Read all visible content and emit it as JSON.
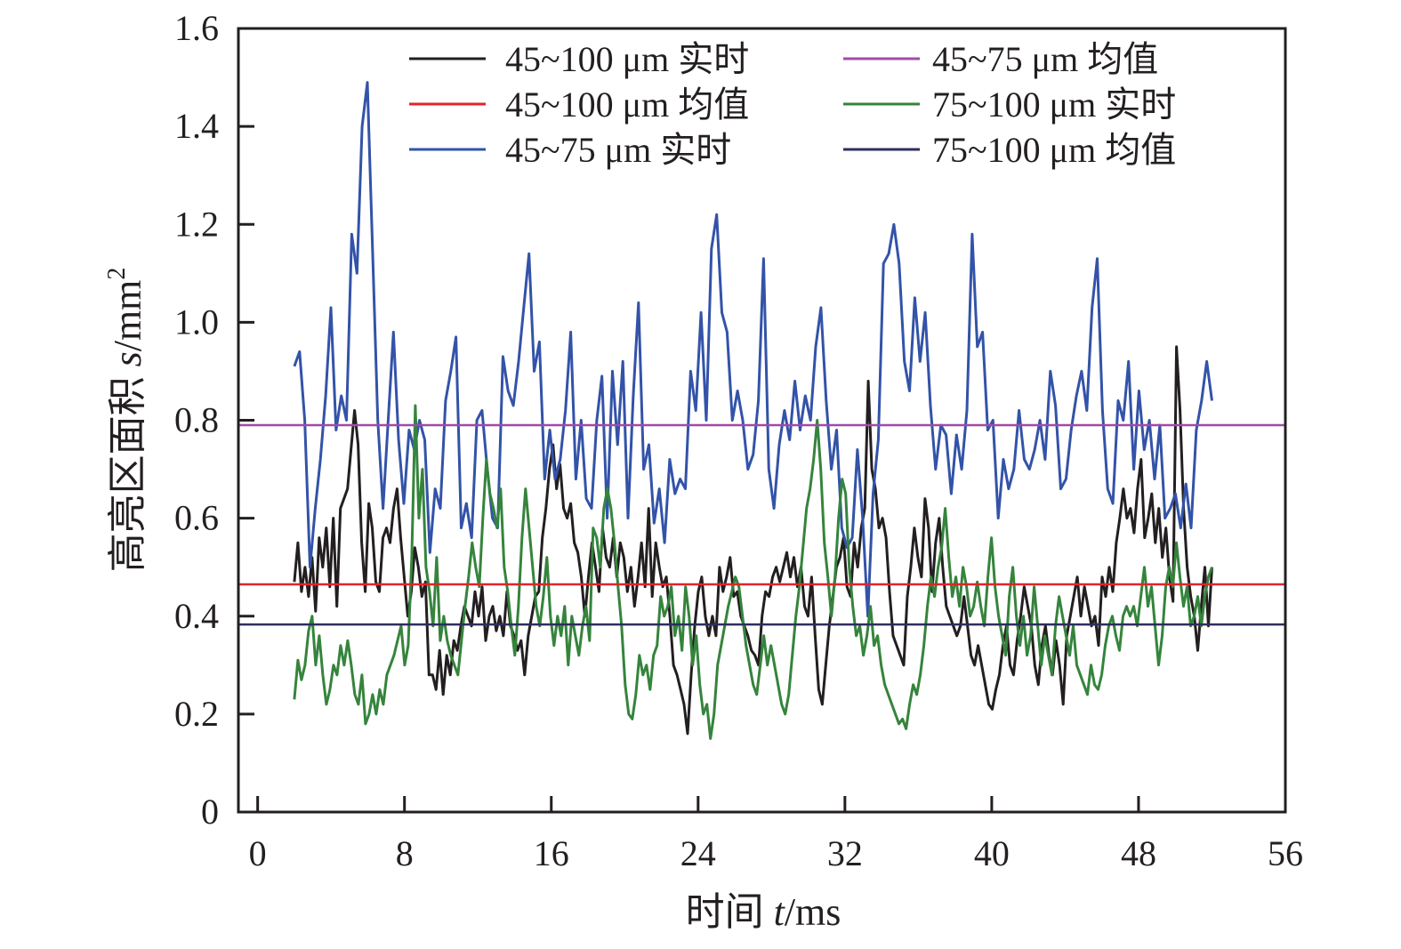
{
  "chart_data": {
    "type": "line",
    "title": "",
    "xlabel": {
      "prefix": "时间 ",
      "var": "t",
      "unit": "/ms"
    },
    "ylabel": {
      "prefix": "高亮区面积 ",
      "var": "s",
      "unit": "/mm",
      "sup": "2"
    },
    "xlim": [
      -1.05,
      56
    ],
    "ylim": [
      0,
      1.6
    ],
    "xticks": [
      "0",
      "8",
      "16",
      "24",
      "32",
      "40",
      "48",
      "56"
    ],
    "xtick_values": [
      0,
      8,
      16,
      24,
      32,
      40,
      48,
      56
    ],
    "yticks": [
      "0",
      "0.2",
      "0.4",
      "0.6",
      "0.8",
      "1.0",
      "1.2",
      "1.4",
      "1.6"
    ],
    "ytick_values": [
      0,
      0.2,
      0.4,
      0.6,
      0.8,
      1.0,
      1.2,
      1.4,
      1.6
    ],
    "grid": false,
    "legend_placement": "top",
    "series": [
      {
        "name": "45~100 μm 实时",
        "color": "#231f20",
        "x_range": [
          2,
          52
        ],
        "values": [
          0.47,
          0.55,
          0.45,
          0.5,
          0.44,
          0.52,
          0.41,
          0.56,
          0.5,
          0.58,
          0.46,
          0.6,
          0.42,
          0.62,
          0.64,
          0.66,
          0.74,
          0.82,
          0.75,
          0.55,
          0.45,
          0.63,
          0.58,
          0.47,
          0.45,
          0.56,
          0.58,
          0.55,
          0.62,
          0.66,
          0.56,
          0.48,
          0.4,
          0.45,
          0.54,
          0.5,
          0.44,
          0.47,
          0.28,
          0.28,
          0.25,
          0.33,
          0.24,
          0.32,
          0.28,
          0.35,
          0.33,
          0.38,
          0.42,
          0.4,
          0.38,
          0.45,
          0.4,
          0.46,
          0.35,
          0.4,
          0.42,
          0.37,
          0.4,
          0.36,
          0.45,
          0.38,
          0.36,
          0.33,
          0.35,
          0.28,
          0.36,
          0.4,
          0.44,
          0.45,
          0.56,
          0.62,
          0.7,
          0.75,
          0.66,
          0.71,
          0.62,
          0.6,
          0.63,
          0.55,
          0.53,
          0.48,
          0.4,
          0.48,
          0.55,
          0.5,
          0.45,
          0.58,
          0.52,
          0.5,
          0.56,
          0.48,
          0.55,
          0.52,
          0.45,
          0.5,
          0.42,
          0.48,
          0.55,
          0.46,
          0.62,
          0.44,
          0.55,
          0.5,
          0.46,
          0.48,
          0.4,
          0.3,
          0.28,
          0.25,
          0.22,
          0.16,
          0.28,
          0.38,
          0.45,
          0.48,
          0.4,
          0.36,
          0.4,
          0.36,
          0.5,
          0.45,
          0.48,
          0.52,
          0.44,
          0.45,
          0.4,
          0.38,
          0.36,
          0.33,
          0.32,
          0.3,
          0.4,
          0.45,
          0.44,
          0.48,
          0.5,
          0.47,
          0.5,
          0.53,
          0.48,
          0.52,
          0.46,
          0.5,
          0.42,
          0.4,
          0.48,
          0.36,
          0.25,
          0.22,
          0.3,
          0.38,
          0.44,
          0.5,
          0.52,
          0.56,
          0.46,
          0.44,
          0.55,
          0.5,
          0.58,
          0.62,
          0.88,
          0.7,
          0.66,
          0.58,
          0.6,
          0.56,
          0.45,
          0.36,
          0.34,
          0.32,
          0.3,
          0.44,
          0.5,
          0.58,
          0.52,
          0.48,
          0.64,
          0.58,
          0.45,
          0.55,
          0.6,
          0.5,
          0.42,
          0.4,
          0.38,
          0.36,
          0.38,
          0.44,
          0.38,
          0.32,
          0.3,
          0.34,
          0.3,
          0.26,
          0.22,
          0.21,
          0.25,
          0.28,
          0.34,
          0.38,
          0.3,
          0.28,
          0.35,
          0.4,
          0.46,
          0.42,
          0.38,
          0.3,
          0.26,
          0.34,
          0.38,
          0.32,
          0.28,
          0.35,
          0.3,
          0.22,
          0.36,
          0.4,
          0.44,
          0.48,
          0.4,
          0.46,
          0.42,
          0.38,
          0.4,
          0.34,
          0.48,
          0.44,
          0.5,
          0.45,
          0.55,
          0.6,
          0.66,
          0.6,
          0.62,
          0.57,
          0.66,
          0.72,
          0.56,
          0.6,
          0.65,
          0.55,
          0.62,
          0.52,
          0.58,
          0.48,
          0.43,
          0.95,
          0.82,
          0.62,
          0.5,
          0.44,
          0.4,
          0.33,
          0.42,
          0.5,
          0.38,
          0.5
        ]
      },
      {
        "name": "45~100 μm 均值",
        "color": "#e0242b",
        "constant": 0.465,
        "x_range": [
          -1.05,
          56
        ]
      },
      {
        "name": "45~75 μm 实时",
        "color": "#3353a8",
        "x_range": [
          2,
          52
        ],
        "values": [
          0.91,
          0.94,
          0.8,
          0.5,
          0.62,
          0.72,
          0.85,
          1.03,
          0.78,
          0.85,
          0.8,
          1.18,
          1.1,
          1.4,
          1.49,
          1.15,
          0.8,
          0.62,
          0.8,
          0.98,
          0.76,
          0.63,
          0.78,
          0.74,
          0.8,
          0.76,
          0.53,
          0.66,
          0.62,
          0.84,
          0.9,
          0.97,
          0.58,
          0.63,
          0.56,
          0.8,
          0.82,
          0.7,
          0.6,
          0.58,
          0.93,
          0.86,
          0.83,
          0.92,
          1.03,
          1.14,
          0.9,
          0.96,
          0.68,
          0.78,
          0.68,
          0.72,
          0.82,
          0.98,
          0.68,
          0.8,
          0.64,
          0.62,
          0.8,
          0.89,
          0.6,
          0.9,
          0.75,
          0.92,
          0.6,
          0.85,
          1.04,
          0.7,
          0.75,
          0.59,
          0.66,
          0.55,
          0.72,
          0.65,
          0.68,
          0.66,
          0.9,
          0.82,
          1.02,
          0.8,
          1.15,
          1.22,
          1.02,
          0.98,
          0.8,
          0.86,
          0.8,
          0.7,
          0.73,
          0.84,
          1.13,
          0.7,
          0.62,
          0.75,
          0.82,
          0.76,
          0.88,
          0.78,
          0.85,
          0.8,
          0.95,
          1.03,
          0.84,
          0.7,
          0.78,
          0.58,
          0.54,
          0.56,
          0.74,
          0.6,
          0.4,
          0.65,
          0.76,
          1.12,
          1.14,
          1.2,
          1.12,
          0.92,
          0.86,
          1.05,
          0.92,
          1.02,
          0.83,
          0.7,
          0.79,
          0.77,
          0.65,
          0.77,
          0.7,
          0.82,
          1.18,
          0.95,
          0.98,
          0.78,
          0.8,
          0.6,
          0.72,
          0.66,
          0.7,
          0.82,
          0.72,
          0.7,
          0.74,
          0.8,
          0.72,
          0.9,
          0.83,
          0.66,
          0.68,
          0.78,
          0.85,
          0.9,
          0.82,
          1.03,
          1.13,
          0.82,
          0.66,
          0.63,
          0.84,
          0.8,
          0.92,
          0.7,
          0.86,
          0.74,
          0.8,
          0.68,
          0.79,
          0.6,
          0.62,
          0.65,
          0.58,
          0.67,
          0.58,
          0.78,
          0.84,
          0.92,
          0.84
        ]
      },
      {
        "name": "45~75 μm 均值",
        "color": "#a04aa8",
        "constant": 0.79,
        "x_range": [
          -1.05,
          56
        ]
      },
      {
        "name": "75~100 μm 实时",
        "color": "#35843c",
        "x_range": [
          2,
          52
        ],
        "values": [
          0.23,
          0.31,
          0.27,
          0.3,
          0.37,
          0.4,
          0.3,
          0.36,
          0.28,
          0.22,
          0.25,
          0.3,
          0.28,
          0.34,
          0.3,
          0.35,
          0.3,
          0.24,
          0.22,
          0.28,
          0.18,
          0.2,
          0.24,
          0.2,
          0.25,
          0.22,
          0.28,
          0.3,
          0.32,
          0.35,
          0.38,
          0.3,
          0.34,
          0.52,
          0.83,
          0.6,
          0.7,
          0.5,
          0.45,
          0.38,
          0.52,
          0.35,
          0.4,
          0.35,
          0.32,
          0.3,
          0.28,
          0.35,
          0.42,
          0.48,
          0.55,
          0.5,
          0.46,
          0.6,
          0.72,
          0.65,
          0.62,
          0.58,
          0.66,
          0.5,
          0.45,
          0.38,
          0.32,
          0.42,
          0.56,
          0.66,
          0.58,
          0.5,
          0.42,
          0.38,
          0.44,
          0.52,
          0.4,
          0.34,
          0.4,
          0.36,
          0.42,
          0.3,
          0.4,
          0.36,
          0.32,
          0.38,
          0.42,
          0.35,
          0.58,
          0.56,
          0.5,
          0.62,
          0.66,
          0.62,
          0.55,
          0.46,
          0.38,
          0.26,
          0.2,
          0.19,
          0.24,
          0.32,
          0.28,
          0.3,
          0.25,
          0.32,
          0.34,
          0.44,
          0.4,
          0.42,
          0.46,
          0.36,
          0.4,
          0.33,
          0.46,
          0.4,
          0.3,
          0.36,
          0.26,
          0.2,
          0.22,
          0.15,
          0.2,
          0.3,
          0.34,
          0.38,
          0.42,
          0.45,
          0.48,
          0.46,
          0.4,
          0.34,
          0.3,
          0.26,
          0.24,
          0.3,
          0.36,
          0.3,
          0.34,
          0.3,
          0.26,
          0.22,
          0.2,
          0.24,
          0.32,
          0.4,
          0.46,
          0.54,
          0.62,
          0.66,
          0.72,
          0.8,
          0.7,
          0.55,
          0.48,
          0.4,
          0.48,
          0.6,
          0.68,
          0.65,
          0.5,
          0.42,
          0.36,
          0.38,
          0.32,
          0.36,
          0.42,
          0.34,
          0.36,
          0.3,
          0.26,
          0.24,
          0.22,
          0.2,
          0.18,
          0.19,
          0.17,
          0.22,
          0.26,
          0.24,
          0.28,
          0.34,
          0.42,
          0.48,
          0.44,
          0.5,
          0.54,
          0.62,
          0.52,
          0.44,
          0.48,
          0.42,
          0.5,
          0.46,
          0.4,
          0.42,
          0.47,
          0.42,
          0.38,
          0.48,
          0.56,
          0.46,
          0.4,
          0.36,
          0.32,
          0.44,
          0.5,
          0.4,
          0.34,
          0.4,
          0.32,
          0.36,
          0.46,
          0.38,
          0.3,
          0.36,
          0.32,
          0.28,
          0.38,
          0.44,
          0.4,
          0.36,
          0.32,
          0.38,
          0.3,
          0.28,
          0.26,
          0.24,
          0.3,
          0.26,
          0.25,
          0.28,
          0.34,
          0.38,
          0.4,
          0.36,
          0.33,
          0.4,
          0.42,
          0.4,
          0.42,
          0.38,
          0.44,
          0.5,
          0.42,
          0.46,
          0.38,
          0.3,
          0.36,
          0.46,
          0.5,
          0.46,
          0.55,
          0.48,
          0.42,
          0.46,
          0.38,
          0.4,
          0.44,
          0.38,
          0.44,
          0.48,
          0.5
        ]
      },
      {
        "name": "75~100 μm 均值",
        "color": "#2e2e5e",
        "constant": 0.383,
        "x_range": [
          -1.05,
          56
        ]
      }
    ]
  }
}
